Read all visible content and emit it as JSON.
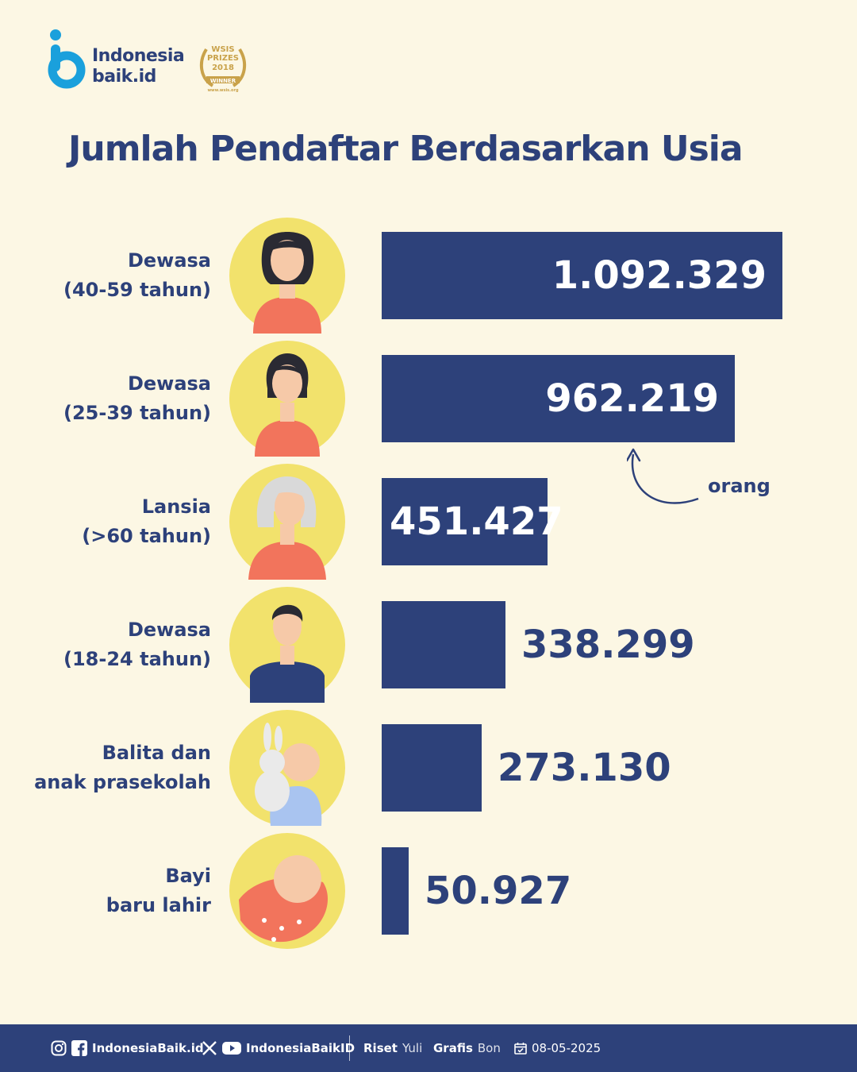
{
  "brand": {
    "name_line1": "Indonesia",
    "name_line2": "baik.id",
    "badge_line1": "WSIS",
    "badge_line2": "PRIZES",
    "badge_year": "2018",
    "badge_ribbon": "WINNER",
    "badge_url": "www.wsis.org",
    "accent": "#2D417A",
    "logo_blue": "#1AA0DC",
    "gold": "#C9A24A"
  },
  "title": "Jumlah Pendaftar Berdasarkan Usia",
  "chart_data": {
    "type": "bar",
    "orientation": "horizontal",
    "title": "Jumlah Pendaftar Berdasarkan Usia",
    "unit": "orang",
    "bar_color": "#2D417A",
    "categories": [
      [
        "Dewasa",
        "(40-59 tahun)"
      ],
      [
        "Dewasa",
        "(25-39 tahun)"
      ],
      [
        "Lansia",
        "(>60 tahun)"
      ],
      [
        "Dewasa",
        "(18-24 tahun)"
      ],
      [
        "Balita dan",
        "anak prasekolah"
      ],
      [
        "Bayi",
        "baru lahir"
      ]
    ],
    "values": [
      1092329,
      962219,
      451427,
      338299,
      273130,
      50927
    ],
    "value_labels": [
      "1.092.329",
      "962.219",
      "451.427",
      "338.299",
      "273.130",
      "50.927"
    ],
    "icons": [
      "woman-curly-hair-icon",
      "woman-short-hair-icon",
      "elderly-woman-icon",
      "young-man-icon",
      "toddler-with-bunny-icon",
      "newborn-baby-icon"
    ],
    "xlim": [
      0,
      1092329
    ]
  },
  "footer": {
    "handle1": "IndonesiaBaik.id",
    "handle2": "IndonesiaBaikID",
    "riset_label": "Riset",
    "riset_name": "Yuli",
    "grafis_label": "Grafis",
    "grafis_name": "Bon",
    "date": "08-05-2025"
  }
}
